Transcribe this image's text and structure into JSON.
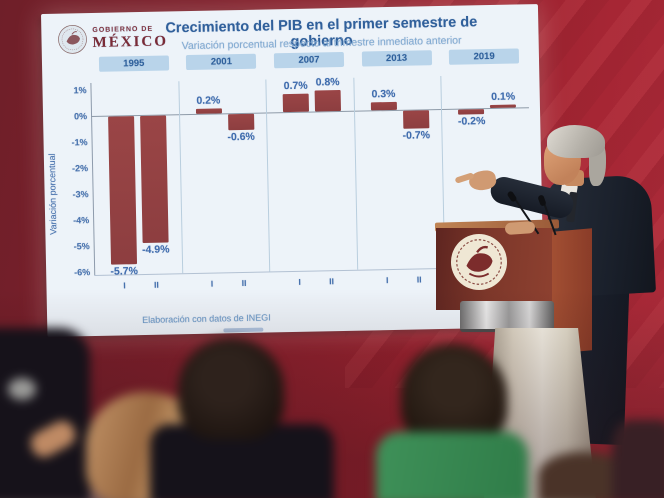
{
  "slide": {
    "logo": {
      "text_top": "GOBIERNO DE",
      "text_bottom": "MÉXICO"
    }
  },
  "chart_data": {
    "type": "bar",
    "title": "Crecimiento del PIB en el primer semestre de gobierno",
    "subtitle": "Variación porcentual respecto al trimestre inmediato anterior",
    "ylabel": "Variación porcentual",
    "ylim": [
      -6,
      1
    ],
    "ytick_labels": [
      "1%",
      "0%",
      "-1%",
      "-2%",
      "-3%",
      "-4%",
      "-5%",
      "-6%"
    ],
    "categories_per_group": [
      "I",
      "II"
    ],
    "groups": [
      {
        "year": "1995",
        "values": [
          -5.7,
          -4.9
        ],
        "labels": [
          "-5.7%",
          "-4.9%"
        ]
      },
      {
        "year": "2001",
        "values": [
          0.2,
          -0.6
        ],
        "labels": [
          "0.2%",
          "-0.6%"
        ]
      },
      {
        "year": "2007",
        "values": [
          0.7,
          0.8
        ],
        "labels": [
          "0.7%",
          "0.8%"
        ]
      },
      {
        "year": "2013",
        "values": [
          0.3,
          -0.7
        ],
        "labels": [
          "0.3%",
          "-0.7%"
        ]
      },
      {
        "year": "2019",
        "values": [
          -0.2,
          0.1
        ],
        "labels": [
          "-0.2%",
          "0.1%"
        ]
      }
    ],
    "legend_position": "none",
    "grid": "zero line, bottom axis and vertical group separators only",
    "source": "Elaboración con datos de INEGI",
    "colors": {
      "bar": "#9a4546",
      "value_label": "#3f6cae",
      "axis_text": "#4671ad",
      "year_box_bg": "#b9d4ea",
      "year_box_text": "#2f619c",
      "title": "#30609b",
      "subtitle": "#83acd3",
      "separator": "#b9cede",
      "zero_line": "#8e9aa8",
      "slide_bg": "#edf3f9",
      "wall_red": "#99222f"
    }
  }
}
